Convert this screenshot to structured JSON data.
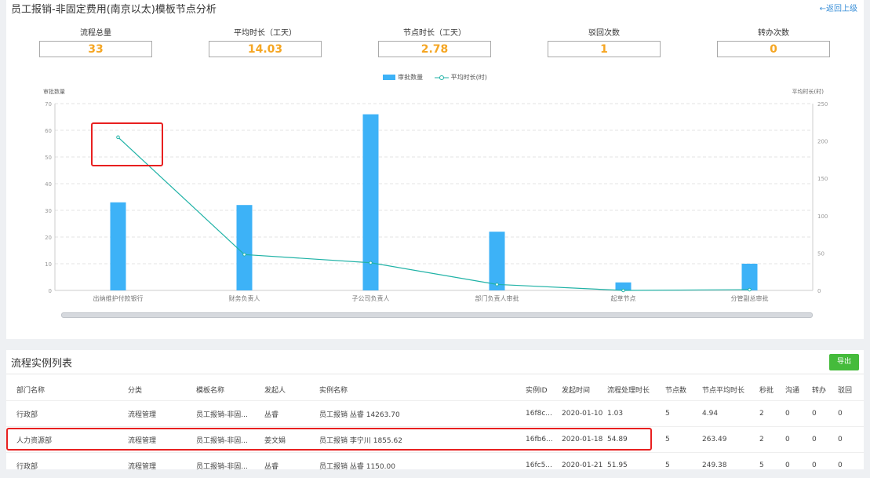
{
  "header": {
    "title": "员工报销-非固定费用(南京以太)模板节点分析",
    "back_label": "←返回上级"
  },
  "stats": [
    {
      "label": "流程总量",
      "value": "33"
    },
    {
      "label": "平均时长（工天）",
      "value": "14.03"
    },
    {
      "label": "节点时长（工天）",
      "value": "2.78"
    },
    {
      "label": "驳回次数",
      "value": "1"
    },
    {
      "label": "转办次数",
      "value": "0"
    }
  ],
  "chart_data": {
    "type": "bar",
    "categories": [
      "出纳维护付款银行",
      "财务负责人",
      "子公司负责人",
      "部门负责人审批",
      "起草节点",
      "分管副总审批"
    ],
    "series": [
      {
        "name": "审批数量",
        "type": "bar",
        "axis": "left",
        "values": [
          33,
          32,
          66,
          22,
          3,
          10
        ]
      },
      {
        "name": "平均时长(时)",
        "type": "line",
        "axis": "right",
        "values": [
          205,
          48,
          37,
          8,
          0,
          1
        ]
      }
    ],
    "ylabel_left": "审批数量",
    "ylabel_right": "平均时长(时)",
    "ylim_left": [
      0,
      70
    ],
    "ylim_right": [
      0,
      250
    ],
    "yticks_left": [
      "0",
      "10",
      "20",
      "30",
      "40",
      "50",
      "60",
      "70"
    ],
    "yticks_right": [
      "0",
      "50",
      "100",
      "150",
      "200",
      "250"
    ],
    "grid": true,
    "legend": "top-center",
    "colors": {
      "bar": "#3db2f7",
      "line": "#1fb2a6"
    }
  },
  "list": {
    "title": "流程实例列表",
    "export_label": "导出",
    "columns": [
      "部门名称",
      "分类",
      "模板名称",
      "发起人",
      "实例名称",
      "实例ID",
      "发起时间",
      "流程处理时长",
      "节点数",
      "节点平均时长",
      "秒批",
      "沟通",
      "转办",
      "驳回"
    ],
    "rows": [
      [
        "行政部",
        "流程管理",
        "员工报销-非固...",
        "丛睿",
        "员工报销 丛睿 14263.70",
        "16f8c...",
        "2020-01-10",
        "1.03",
        "5",
        "4.94",
        "2",
        "0",
        "0",
        "0"
      ],
      [
        "人力资源部",
        "流程管理",
        "员工报销-非固...",
        "姜文娟",
        "员工报销 李宁川 1855.62",
        "16fb6...",
        "2020-01-18",
        "54.89",
        "5",
        "263.49",
        "2",
        "0",
        "0",
        "0"
      ],
      [
        "行政部",
        "流程管理",
        "员工报销-非固...",
        "丛睿",
        "员工报销 丛睿 1150.00",
        "16fc5...",
        "2020-01-21",
        "51.95",
        "5",
        "249.38",
        "5",
        "0",
        "0",
        "0"
      ]
    ]
  },
  "colors": {
    "accent": "#f5a623",
    "highlight": "#e82020",
    "export": "#45bb3b",
    "link": "#3a8fd8"
  }
}
